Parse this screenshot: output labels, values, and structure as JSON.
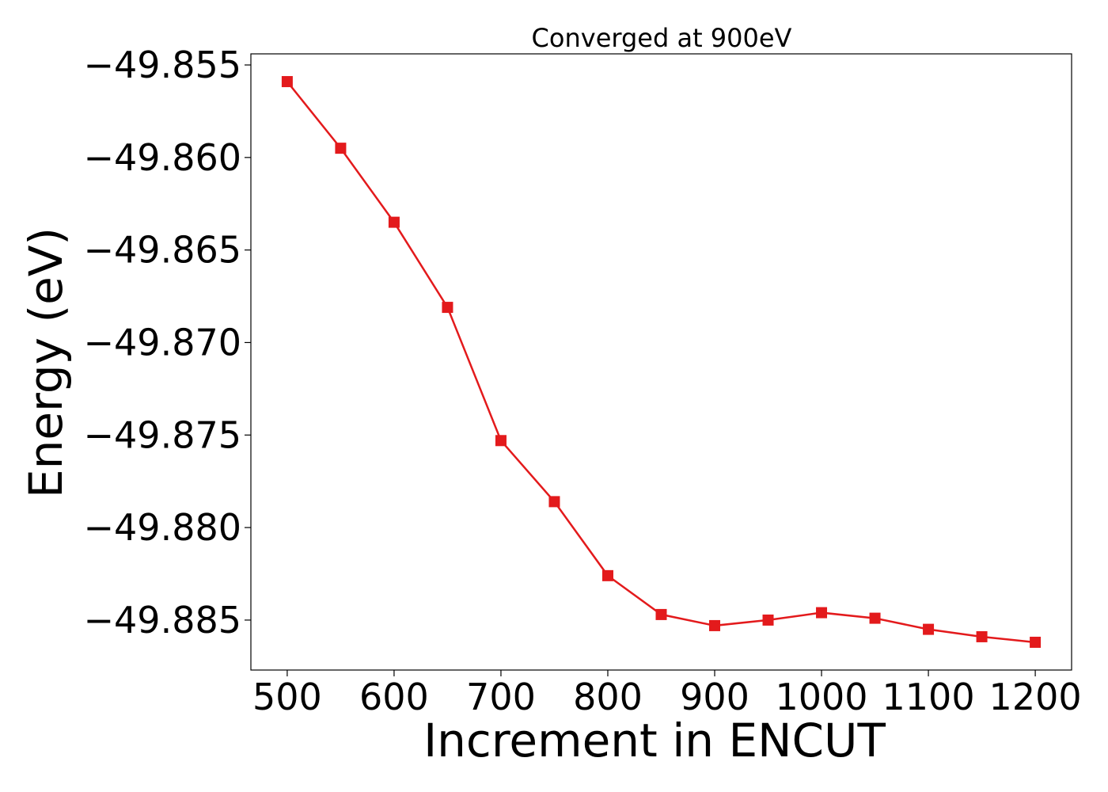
{
  "chart_data": {
    "type": "line",
    "title": "Converged at 900eV",
    "xlabel": "Increment in ENCUT",
    "ylabel": "Energy (eV)",
    "x": [
      500,
      550,
      600,
      650,
      700,
      750,
      800,
      850,
      900,
      950,
      1000,
      1050,
      1100,
      1150,
      1200
    ],
    "series": [
      {
        "name": "",
        "values": [
          -49.8559,
          -49.8595,
          -49.8635,
          -49.8681,
          -49.8753,
          -49.8786,
          -49.8826,
          -49.8847,
          -49.8853,
          -49.885,
          -49.8846,
          -49.8849,
          -49.8855,
          -49.8859,
          -49.8862
        ],
        "color": "#e31a1c",
        "marker": "square"
      }
    ],
    "xlim": [
      466,
      1234
    ],
    "ylim": [
      -49.8877,
      -49.8544
    ],
    "xticks": [
      500,
      600,
      700,
      800,
      900,
      1000,
      1100,
      1200
    ],
    "xtick_labels": [
      "500",
      "600",
      "700",
      "800",
      "900",
      "1000",
      "1100",
      "1200"
    ],
    "yticks": [
      -49.855,
      -49.86,
      -49.865,
      -49.87,
      -49.875,
      -49.88,
      -49.885
    ],
    "ytick_labels": [
      "−49.855",
      "−49.860",
      "−49.865",
      "−49.870",
      "−49.875",
      "−49.880",
      "−49.885"
    ],
    "grid": false,
    "legend": "none"
  }
}
